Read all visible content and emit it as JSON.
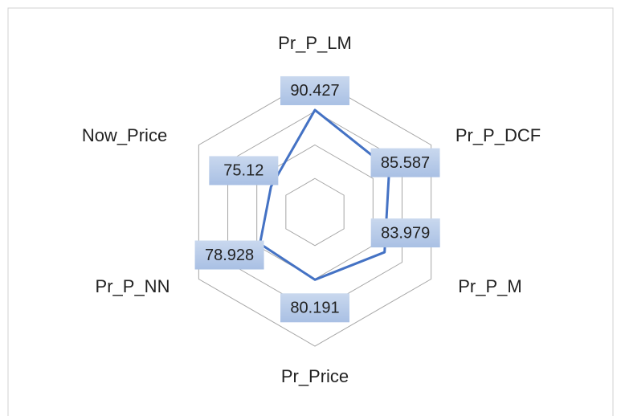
{
  "chart_data": {
    "type": "radar",
    "categories": [
      "Pr_P_LM",
      "Pr_P_DCF",
      "Pr_P_M",
      "Pr_Price",
      "Pr_P_NN",
      "Now_Price"
    ],
    "series": [
      {
        "color": "#4472c4",
        "values": [
          90.427,
          85.587,
          83.979,
          80.191,
          78.928,
          75.12
        ]
      }
    ],
    "ylim": [
      60,
      100
    ],
    "yticks": [
      60,
      70,
      80,
      90,
      100
    ],
    "grid": true,
    "data_labels": true
  }
}
